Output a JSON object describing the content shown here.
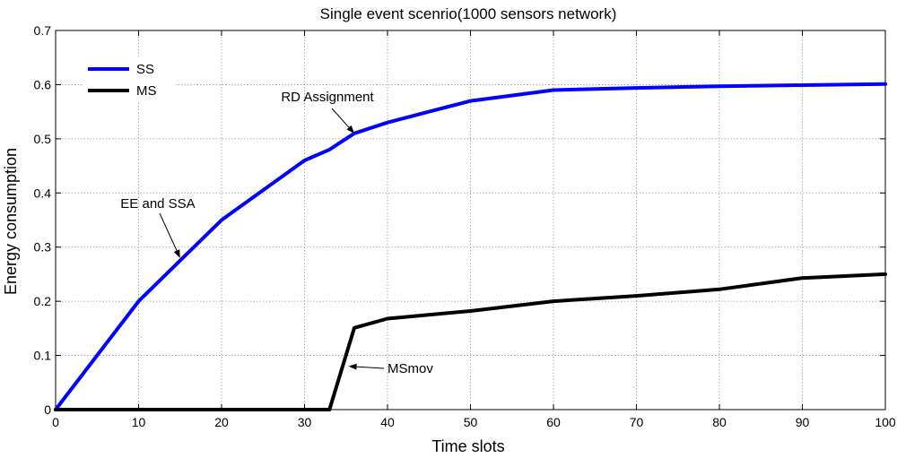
{
  "chart_data": {
    "type": "line",
    "title": "Single event scenrio(1000 sensors network)",
    "xlabel": "Time slots",
    "ylabel": "Energy consumption",
    "xlim": [
      0,
      100
    ],
    "ylim": [
      0,
      0.7
    ],
    "xticks": [
      0,
      10,
      20,
      30,
      40,
      50,
      60,
      70,
      80,
      90,
      100
    ],
    "yticks": [
      0,
      0.1,
      0.2,
      0.3,
      0.4,
      0.5,
      0.6,
      0.7
    ],
    "xtick_labels": [
      "0",
      "10",
      "20",
      "30",
      "40",
      "50",
      "60",
      "70",
      "80",
      "90",
      "100"
    ],
    "ytick_labels": [
      "0",
      "0.1",
      "0.2",
      "0.3",
      "0.4",
      "0.5",
      "0.6",
      "0.7"
    ],
    "grid": true,
    "legend_position": "top-left",
    "series": [
      {
        "name": "SS",
        "color": "#0000ff",
        "x": [
          0,
          10,
          20,
          30,
          33,
          36,
          40,
          45,
          50,
          60,
          70,
          80,
          90,
          100
        ],
        "y": [
          0,
          0.2,
          0.35,
          0.46,
          0.48,
          0.51,
          0.53,
          0.55,
          0.57,
          0.59,
          0.594,
          0.597,
          0.599,
          0.601
        ]
      },
      {
        "name": "MS",
        "color": "#000000",
        "x": [
          0,
          33,
          36,
          40,
          50,
          60,
          70,
          80,
          90,
          100
        ],
        "y": [
          0,
          0,
          0.151,
          0.168,
          0.182,
          0.2,
          0.21,
          0.222,
          0.243,
          0.25
        ]
      }
    ],
    "annotations": [
      {
        "text": "EE and SSA",
        "x": 15,
        "y": 0.28
      },
      {
        "text": "RD Assignment",
        "x": 36,
        "y": 0.51
      },
      {
        "text": "MSmov",
        "x": 35.3,
        "y": 0.08
      }
    ]
  }
}
